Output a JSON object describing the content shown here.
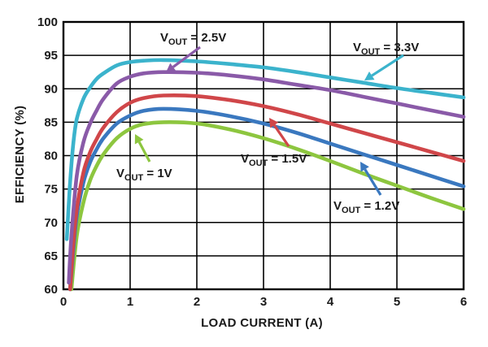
{
  "chart_data": {
    "type": "line",
    "xlabel": "LOAD CURRENT (A)",
    "ylabel": "EFFICIENCY (%)",
    "xlim": [
      0,
      6
    ],
    "ylim": [
      60,
      100
    ],
    "xticks": [
      0,
      1,
      2,
      3,
      4,
      5,
      6
    ],
    "yticks": [
      60,
      65,
      70,
      75,
      80,
      85,
      90,
      95,
      100
    ],
    "grid": true,
    "series": [
      {
        "name": "VOUT = 3.3V",
        "label_main": "V",
        "label_sub": "OUT",
        "label_rest": " = 3.3V",
        "color": "#3bb3cc",
        "x": [
          0.05,
          0.1,
          0.15,
          0.2,
          0.3,
          0.4,
          0.5,
          0.6,
          0.8,
          1.0,
          1.2,
          1.5,
          2.0,
          2.5,
          3.0,
          3.5,
          4.0,
          4.5,
          5.0,
          5.5,
          6.0
        ],
        "y": [
          67.5,
          76,
          82,
          85.5,
          88.5,
          90.2,
          91.5,
          92.3,
          93.5,
          94.0,
          94.2,
          94.3,
          94.1,
          93.7,
          93.2,
          92.5,
          91.7,
          90.9,
          90.1,
          89.4,
          88.7
        ]
      },
      {
        "name": "VOUT = 2.5V",
        "label_main": "V",
        "label_sub": "OUT",
        "label_rest": " = 2.5V",
        "color": "#8a5aa8",
        "x": [
          0.08,
          0.12,
          0.2,
          0.3,
          0.4,
          0.5,
          0.6,
          0.8,
          1.0,
          1.2,
          1.5,
          2.0,
          2.5,
          3.0,
          3.5,
          4.0,
          4.5,
          5.0,
          5.5,
          6.0
        ],
        "y": [
          61,
          68,
          77,
          82,
          84.8,
          86.8,
          88.5,
          90.8,
          91.8,
          92.3,
          92.5,
          92.4,
          92.0,
          91.4,
          90.6,
          89.8,
          88.8,
          87.8,
          86.8,
          85.8
        ]
      },
      {
        "name": "VOUT = 1.5V",
        "label_main": "V",
        "label_sub": "OUT",
        "label_rest": " = 1.5V",
        "color": "#d04649",
        "x": [
          0.1,
          0.15,
          0.2,
          0.3,
          0.4,
          0.5,
          0.6,
          0.8,
          1.0,
          1.2,
          1.5,
          2.0,
          2.5,
          3.0,
          3.5,
          4.0,
          4.5,
          5.0,
          5.5,
          6.0
        ],
        "y": [
          60,
          67,
          72,
          77.5,
          80.5,
          82.5,
          84.2,
          86.5,
          87.9,
          88.6,
          89.0,
          88.9,
          88.3,
          87.4,
          86.2,
          84.8,
          83.4,
          82.0,
          80.6,
          79.2
        ]
      },
      {
        "name": "VOUT = 1.2V",
        "label_main": "V",
        "label_sub": "OUT",
        "label_rest": " = 1.2V",
        "color": "#3a78bf",
        "x": [
          0.1,
          0.15,
          0.2,
          0.3,
          0.4,
          0.5,
          0.6,
          0.8,
          1.0,
          1.2,
          1.5,
          2.0,
          2.5,
          3.0,
          3.5,
          4.0,
          4.5,
          5.0,
          5.5,
          6.0
        ],
        "y": [
          60,
          66,
          71,
          76,
          79,
          81,
          82.6,
          84.8,
          86.0,
          86.7,
          87.0,
          86.7,
          85.9,
          84.8,
          83.4,
          81.8,
          80.2,
          78.6,
          77.0,
          75.4
        ]
      },
      {
        "name": "VOUT = 1V",
        "label_main": "V",
        "label_sub": "OUT",
        "label_rest": " = 1V",
        "color": "#8dc63f",
        "x": [
          0.12,
          0.2,
          0.3,
          0.4,
          0.5,
          0.6,
          0.8,
          1.0,
          1.2,
          1.5,
          2.0,
          2.5,
          3.0,
          3.5,
          4.0,
          4.5,
          5.0,
          5.5,
          6.0
        ],
        "y": [
          60,
          68,
          73,
          76.3,
          78.5,
          80.2,
          82.6,
          84.0,
          84.7,
          85.0,
          84.8,
          83.9,
          82.6,
          81.0,
          79.2,
          77.3,
          75.5,
          73.7,
          72.0
        ]
      }
    ]
  }
}
